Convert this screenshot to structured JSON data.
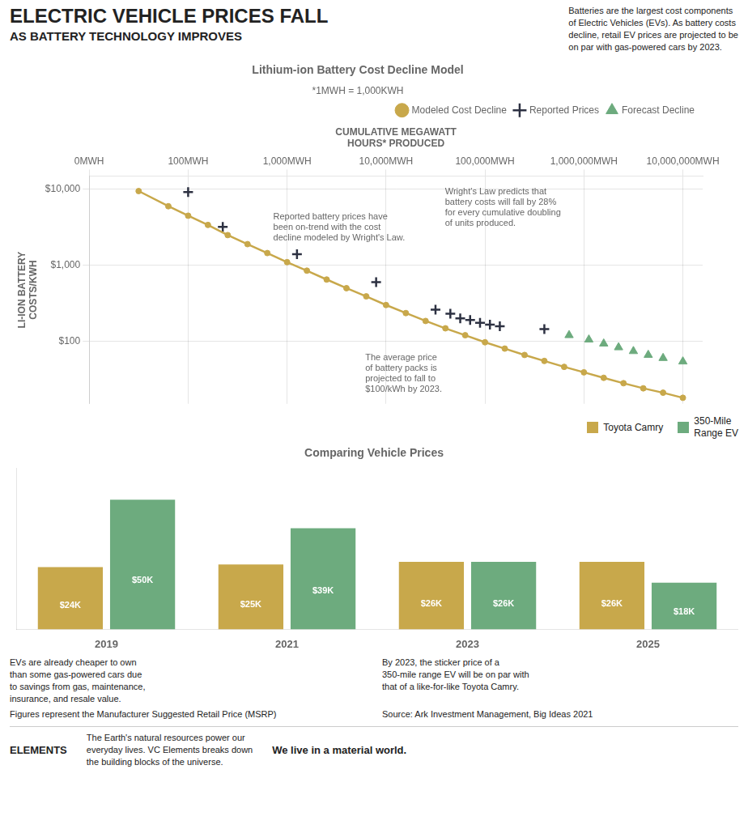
{
  "title": "ELECTRIC VEHICLE PRICES FALL",
  "subtitle": "AS BATTERY TECHNOLOGY IMPROVES",
  "annotations": [
    "Batteries are the largest cost components\nof Electric Vehicles (EVs). As battery costs\ndecline, retail EV prices are projected to be\non par with gas-powered cars by 2023.",
    "ELEMENTS",
    "The Earth's natural resources power our\neveryday lives. VC Elements breaks down\nthe building blocks of the universe.",
    "We live in a ",
    "material world."
  ],
  "chart_data": [
    {
      "type": "line",
      "title": "Lithium-ion Battery Cost Decline Model",
      "subtitle": "*1MWH = 1,000KWH",
      "xlabel": "CUMULATIVE MEGAWATT\nHOURS* PRODUCED",
      "ylabel": "LI-ION BATTERY\nCOSTS/KWH",
      "log": "y",
      "grid": true,
      "legend": "upper right",
      "xlim": [
        0,
        6.2
      ],
      "xticks": [
        {
          "value": 0,
          "label": "0MWH"
        },
        {
          "value": 1,
          "label": "100MWH"
        },
        {
          "value": 2,
          "label": "1,000MWH"
        },
        {
          "value": 3,
          "label": "10,000MWH"
        },
        {
          "value": 4,
          "label": "100,000MWH"
        },
        {
          "value": 5,
          "label": "1,000,000MWH"
        },
        {
          "value": 6,
          "label": "10,000,000MWH"
        }
      ],
      "ylim": [
        15,
        15000
      ],
      "yticks": [
        {
          "value": 100,
          "label": "$100"
        },
        {
          "value": 1000,
          "label": "$1,000"
        },
        {
          "value": 10000,
          "label": "$10,000"
        }
      ],
      "series": [
        {
          "name": "Modeled Cost Decline",
          "type": "line",
          "marker": "circle",
          "color": "#c8a84b",
          "x": [
            0.5,
            0.8,
            1.0,
            1.2,
            1.4,
            1.6,
            1.8,
            2.0,
            2.2,
            2.4,
            2.6,
            2.8,
            3.0,
            3.2,
            3.4,
            3.6,
            3.8,
            4.0,
            4.2,
            4.4,
            4.6,
            4.8,
            5.0,
            5.2,
            5.4,
            5.6,
            5.8,
            6.0
          ],
          "values": [
            9500,
            6000,
            4500,
            3400,
            2500,
            1900,
            1450,
            1100,
            850,
            650,
            500,
            390,
            300,
            235,
            185,
            148,
            120,
            97,
            80,
            66,
            55,
            46,
            39,
            33,
            28,
            24,
            21,
            18
          ]
        },
        {
          "name": "Reported Prices",
          "type": "scatter",
          "marker": "plus",
          "color": "#2d3142",
          "x": [
            1.0,
            1.35,
            2.1,
            2.9,
            3.5,
            3.65,
            3.75,
            3.85,
            3.95,
            4.05,
            4.15,
            4.6
          ],
          "values": [
            9200,
            3200,
            1400,
            600,
            260,
            230,
            200,
            190,
            175,
            165,
            158,
            145
          ]
        },
        {
          "name": "Forecast Decline",
          "type": "scatter",
          "marker": "triangle",
          "color": "#6dab7e",
          "x": [
            4.85,
            5.05,
            5.2,
            5.35,
            5.5,
            5.65,
            5.8,
            6.0
          ],
          "values": [
            120,
            105,
            93,
            83,
            74,
            66,
            60,
            54
          ]
        }
      ],
      "annotations": [
        "Wright's Law predicts that\nbattery costs will fall by 28%\nfor every cumulative doubling\nof units produced.",
        "Reported battery prices have\nbeen on-trend with the cost\ndecline modeled by Wright's Law.",
        "The average price\nof battery packs is\nprojected to fall to\n$100/kWh by 2023."
      ]
    },
    {
      "type": "bar",
      "title": "Comparing Vehicle Prices",
      "categories": [
        "2019",
        "2021",
        "2023",
        "2025"
      ],
      "ylim": [
        0,
        62
      ],
      "tick_labels": "x",
      "grid": false,
      "legend": "upper right",
      "data_labels": true,
      "series": [
        {
          "name": "Toyota Camry",
          "color": "#c8a84b",
          "values": [
            24,
            25,
            26,
            26
          ],
          "value_labels": [
            "$24K",
            "$25K",
            "$26K",
            "$26K"
          ]
        },
        {
          "name": "350-Mile\nRange EV",
          "color": "#6dab7e",
          "values": [
            50,
            39,
            26,
            18
          ],
          "value_labels": [
            "$50K",
            "$39K",
            "$26K",
            "$18K"
          ]
        }
      ],
      "annotations": [
        "EVs are already cheaper to own\nthan some gas-powered cars due\nto savings from gas, maintenance,\ninsurance, and resale value.",
        "By 2023, the sticker price of a\n350-mile range EV will be on par with\nthat of a like-for-like Toyota Camry.",
        "Figures represent the Manufacturer Suggested Retail Price (MSRP)",
        "Source: Ark Investment Management, Big Ideas 2021"
      ]
    }
  ]
}
